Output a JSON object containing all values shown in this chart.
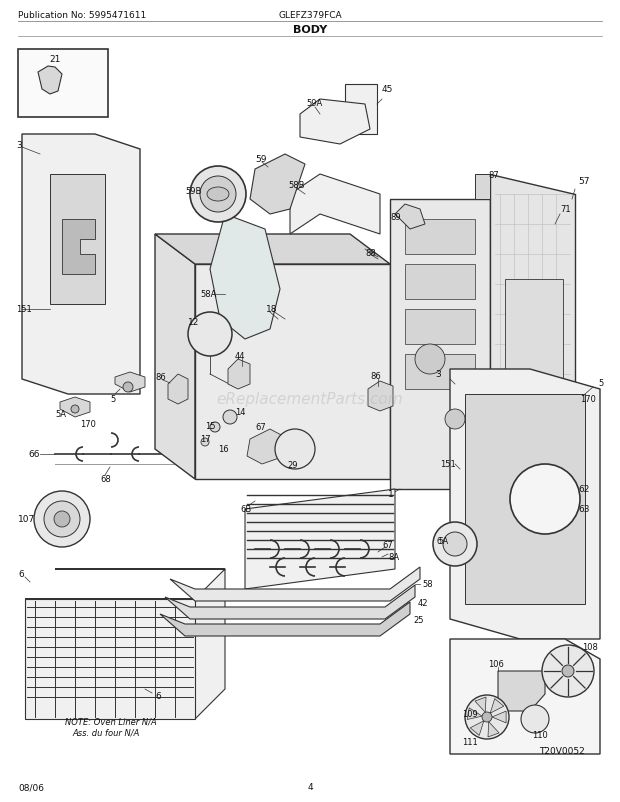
{
  "title": "BODY",
  "pub_no": "Publication No: 5995471611",
  "model": "GLEFZ379FCA",
  "date": "08/06",
  "page": "4",
  "watermark": "eReplacementParts.com",
  "diagram_code": "T20V0052",
  "note_line1": "NOTE: Oven Liner N/A",
  "note_line2": "Ass. du four N/A",
  "bg_color": "#ffffff",
  "lc": "#333333",
  "tc": "#111111",
  "fc_light": "#f0f0f0",
  "fc_mid": "#d8d8d8",
  "fc_dark": "#bbbbbb",
  "fig_width": 6.2,
  "fig_height": 8.03,
  "dpi": 100
}
